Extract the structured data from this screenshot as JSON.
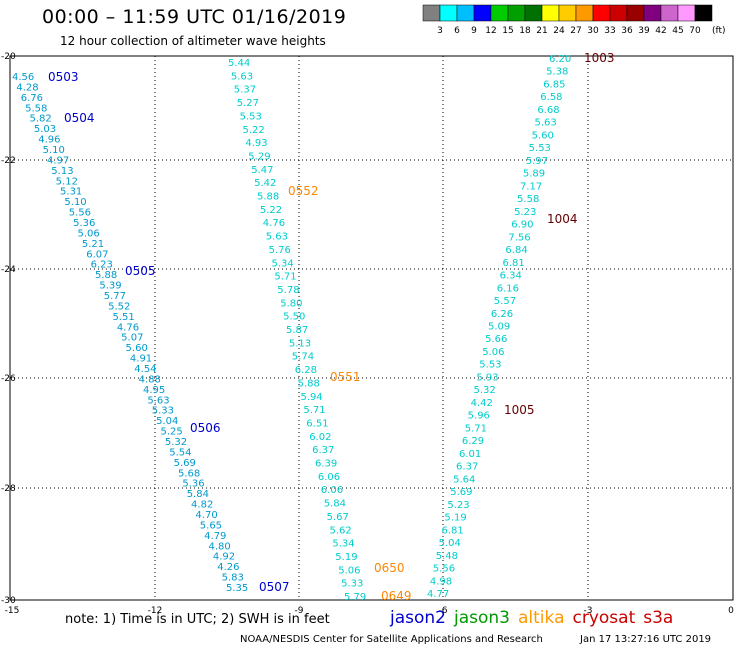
{
  "header": {
    "title": "00:00 – 11:59 UTC 01/16/2019",
    "subtitle": "12 hour collection of altimeter wave heights"
  },
  "colorbar": {
    "unit_label": "(ft)",
    "ticks": [
      "3",
      "6",
      "9",
      "12",
      "15",
      "18",
      "21",
      "24",
      "27",
      "30",
      "33",
      "36",
      "39",
      "42",
      "45",
      "70"
    ],
    "colors": [
      "#808080",
      "#00ffff",
      "#00bfff",
      "#0000ff",
      "#00cc00",
      "#00a000",
      "#007000",
      "#ffff00",
      "#ffcc00",
      "#ff9900",
      "#ff0000",
      "#cc0000",
      "#990000",
      "#800080",
      "#cc66cc",
      "#ff99ff",
      "#000000"
    ]
  },
  "axes": {
    "x_ticks": [
      "-15",
      "-12",
      "-9",
      "-6",
      "-3",
      "0"
    ],
    "y_ticks": [
      "-20",
      "-22",
      "-24",
      "-26",
      "-28",
      "-30"
    ]
  },
  "tracks": {
    "jason2": {
      "color": "#0000cc",
      "value_color": "#0099cc",
      "labels": [
        "0503",
        "0504",
        "0505",
        "0506",
        "0507"
      ],
      "values": [
        "4.56",
        "4.28",
        "6.76",
        "5.58",
        "5.82",
        "5.03",
        "4.96",
        "5.10",
        "4.97",
        "5.13",
        "5.12",
        "5.31",
        "5.10",
        "5.56",
        "5.36",
        "5.06",
        "5.21",
        "6.07",
        "6.23",
        "5.88",
        "5.39",
        "5.77",
        "5.52",
        "5.51",
        "4.76",
        "5.07",
        "5.60",
        "4.91",
        "4.54",
        "4.88",
        "4.95",
        "5.63",
        "5.33",
        "5.04",
        "5.25",
        "5.32",
        "5.54",
        "5.69",
        "5.68",
        "5.36",
        "5.84",
        "4.82",
        "4.70",
        "5.65",
        "4.79",
        "4.80",
        "4.92",
        "4.26",
        "5.83",
        "5.35"
      ]
    },
    "altika": {
      "color": "#ff8800",
      "value_color": "#00cccc",
      "labels": [
        "0552",
        "0551",
        "0650",
        "0649"
      ],
      "track_a": [
        "5.44",
        "5.63",
        "5.37",
        "5.27",
        "5.53",
        "5.22",
        "4.93",
        "5.29",
        "5.47",
        "5.42",
        "5.88",
        "5.22",
        "4.76",
        "5.63",
        "5.76",
        "5.34",
        "5.71",
        "5.78",
        "5.80",
        "5.50",
        "5.87",
        "5.13",
        "5.74",
        "6.28",
        "5.88",
        "5.94",
        "5.71",
        "6.51",
        "6.02",
        "6.37",
        "6.39",
        "6.06",
        "6.06",
        "5.84",
        "5.67",
        "5.62",
        "5.34",
        "5.19",
        "5.06",
        "5.33",
        "5.79"
      ],
      "track_b": [
        "4.77",
        "4.98",
        "5.56",
        "5.48",
        "5.04",
        "6.81",
        "5.19",
        "5.23",
        "5.69",
        "5.64",
        "6.37",
        "6.01",
        "6.29",
        "5.71",
        "5.96",
        "4.42",
        "5.32",
        "5.93",
        "5.53",
        "5.06",
        "5.66",
        "5.09",
        "6.26",
        "5.57",
        "6.16",
        "6.34",
        "6.81",
        "6.84",
        "7.56",
        "6.90",
        "5.23",
        "5.58",
        "7.17",
        "5.89",
        "5.97",
        "5.53",
        "5.60",
        "5.63",
        "6.68",
        "6.58",
        "6.85",
        "5.38",
        "6.20"
      ]
    },
    "cryosat": {
      "color": "#660000",
      "labels": [
        "1003",
        "1004",
        "1005"
      ]
    }
  },
  "note": "note:  1) Time is in UTC;  2) SWH is in feet",
  "legend": [
    {
      "name": "jason2",
      "color": "#0000cc"
    },
    {
      "name": "jason3",
      "color": "#009900"
    },
    {
      "name": "altika",
      "color": "#ff9900"
    },
    {
      "name": "cryosat",
      "color": "#cc0000"
    },
    {
      "name": "s3a",
      "color": "#cc0000"
    }
  ],
  "footer": {
    "left": "NOAA/NESDIS Center for Satellite Applications and Research",
    "right": "Jan 17 13:27:16 UTC 2019"
  }
}
